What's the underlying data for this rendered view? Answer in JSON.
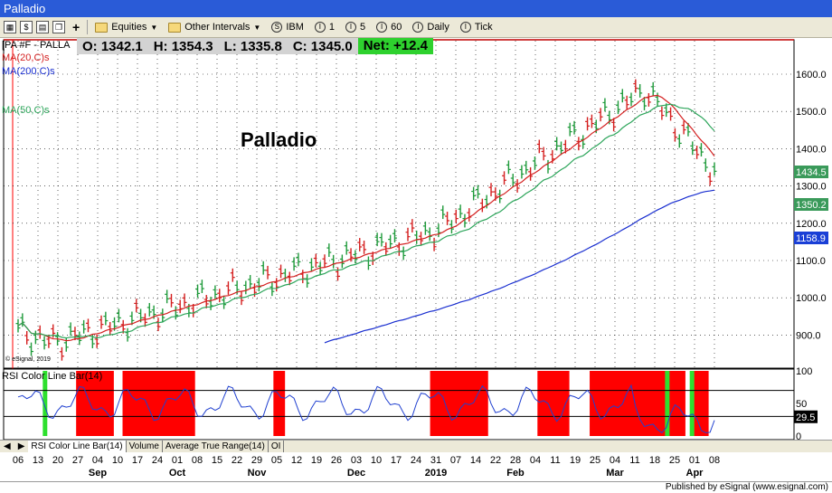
{
  "window": {
    "title": "Palladio"
  },
  "toolbar": {
    "equities": "Equities",
    "other_intervals": "Other Intervals",
    "symbol_ibm": "IBM",
    "interval_1": "1",
    "interval_5": "5",
    "interval_60": "60",
    "interval_daily": "Daily",
    "interval_tick": "Tick",
    "add_symbol": "+"
  },
  "legend": {
    "symbol": "[PA #F - PALLA",
    "ma20": "MA(20,C)s",
    "ma200": "MA(200,C)s",
    "ma50": "MA(50,C)s",
    "watermark": "© eSignal, 2019",
    "big_title": "Palladio"
  },
  "ohlc": {
    "open": "O: 1342.1",
    "high": "H: 1354.3",
    "low": "L: 1335.8",
    "close": "C: 1345.0",
    "net": "Net: +12.4"
  },
  "price_axis": {
    "ticks": [
      "1600.0",
      "1500.0",
      "1400.0",
      "1300.0",
      "1200.0",
      "1100.0",
      "1000.0",
      "900.0"
    ],
    "tags": [
      {
        "label": "1434.5",
        "bg": "#3a9a5a"
      },
      {
        "label": "1350.2",
        "bg": "#3a9a5a"
      },
      {
        "label": "1158.9",
        "bg": "#1a3fd6"
      }
    ]
  },
  "rsi_panel": {
    "title": "RSI Color Line Bar(14)",
    "ticks": [
      "100",
      "50",
      "0"
    ],
    "tag": "29.5"
  },
  "x_axis": {
    "days": [
      "06",
      "13",
      "20",
      "27",
      "04",
      "10",
      "17",
      "24",
      "01",
      "08",
      "15",
      "22",
      "29",
      "05",
      "12",
      "19",
      "26",
      "03",
      "10",
      "17",
      "24",
      "31",
      "07",
      "14",
      "22",
      "28",
      "04",
      "11",
      "19",
      "25",
      "04",
      "11",
      "18",
      "25",
      "01",
      "08"
    ],
    "months": [
      {
        "label": "Sep",
        "i": 4
      },
      {
        "label": "Oct",
        "i": 8
      },
      {
        "label": "Nov",
        "i": 12
      },
      {
        "label": "Dec",
        "i": 17
      },
      {
        "label": "2019",
        "i": 21
      },
      {
        "label": "Feb",
        "i": 25
      },
      {
        "label": "Mar",
        "i": 30
      },
      {
        "label": "Apr",
        "i": 34
      }
    ]
  },
  "tabs": [
    "RSI Color Line Bar(14)",
    "Volume",
    "Average True Range(14)",
    "OI"
  ],
  "status": {
    "published": "Published by eSignal (www.esignal.com)"
  },
  "colors": {
    "ma20": "#d42020",
    "ma50": "#2ca55a",
    "ma200": "#1a2fd0",
    "up_bar": "#1e9a3a",
    "down_bar": "#d41e1e",
    "rsi_overbought": "#ff0000",
    "rsi_oversold": "#2ee02e",
    "rsi_line": "#2040d0"
  }
}
